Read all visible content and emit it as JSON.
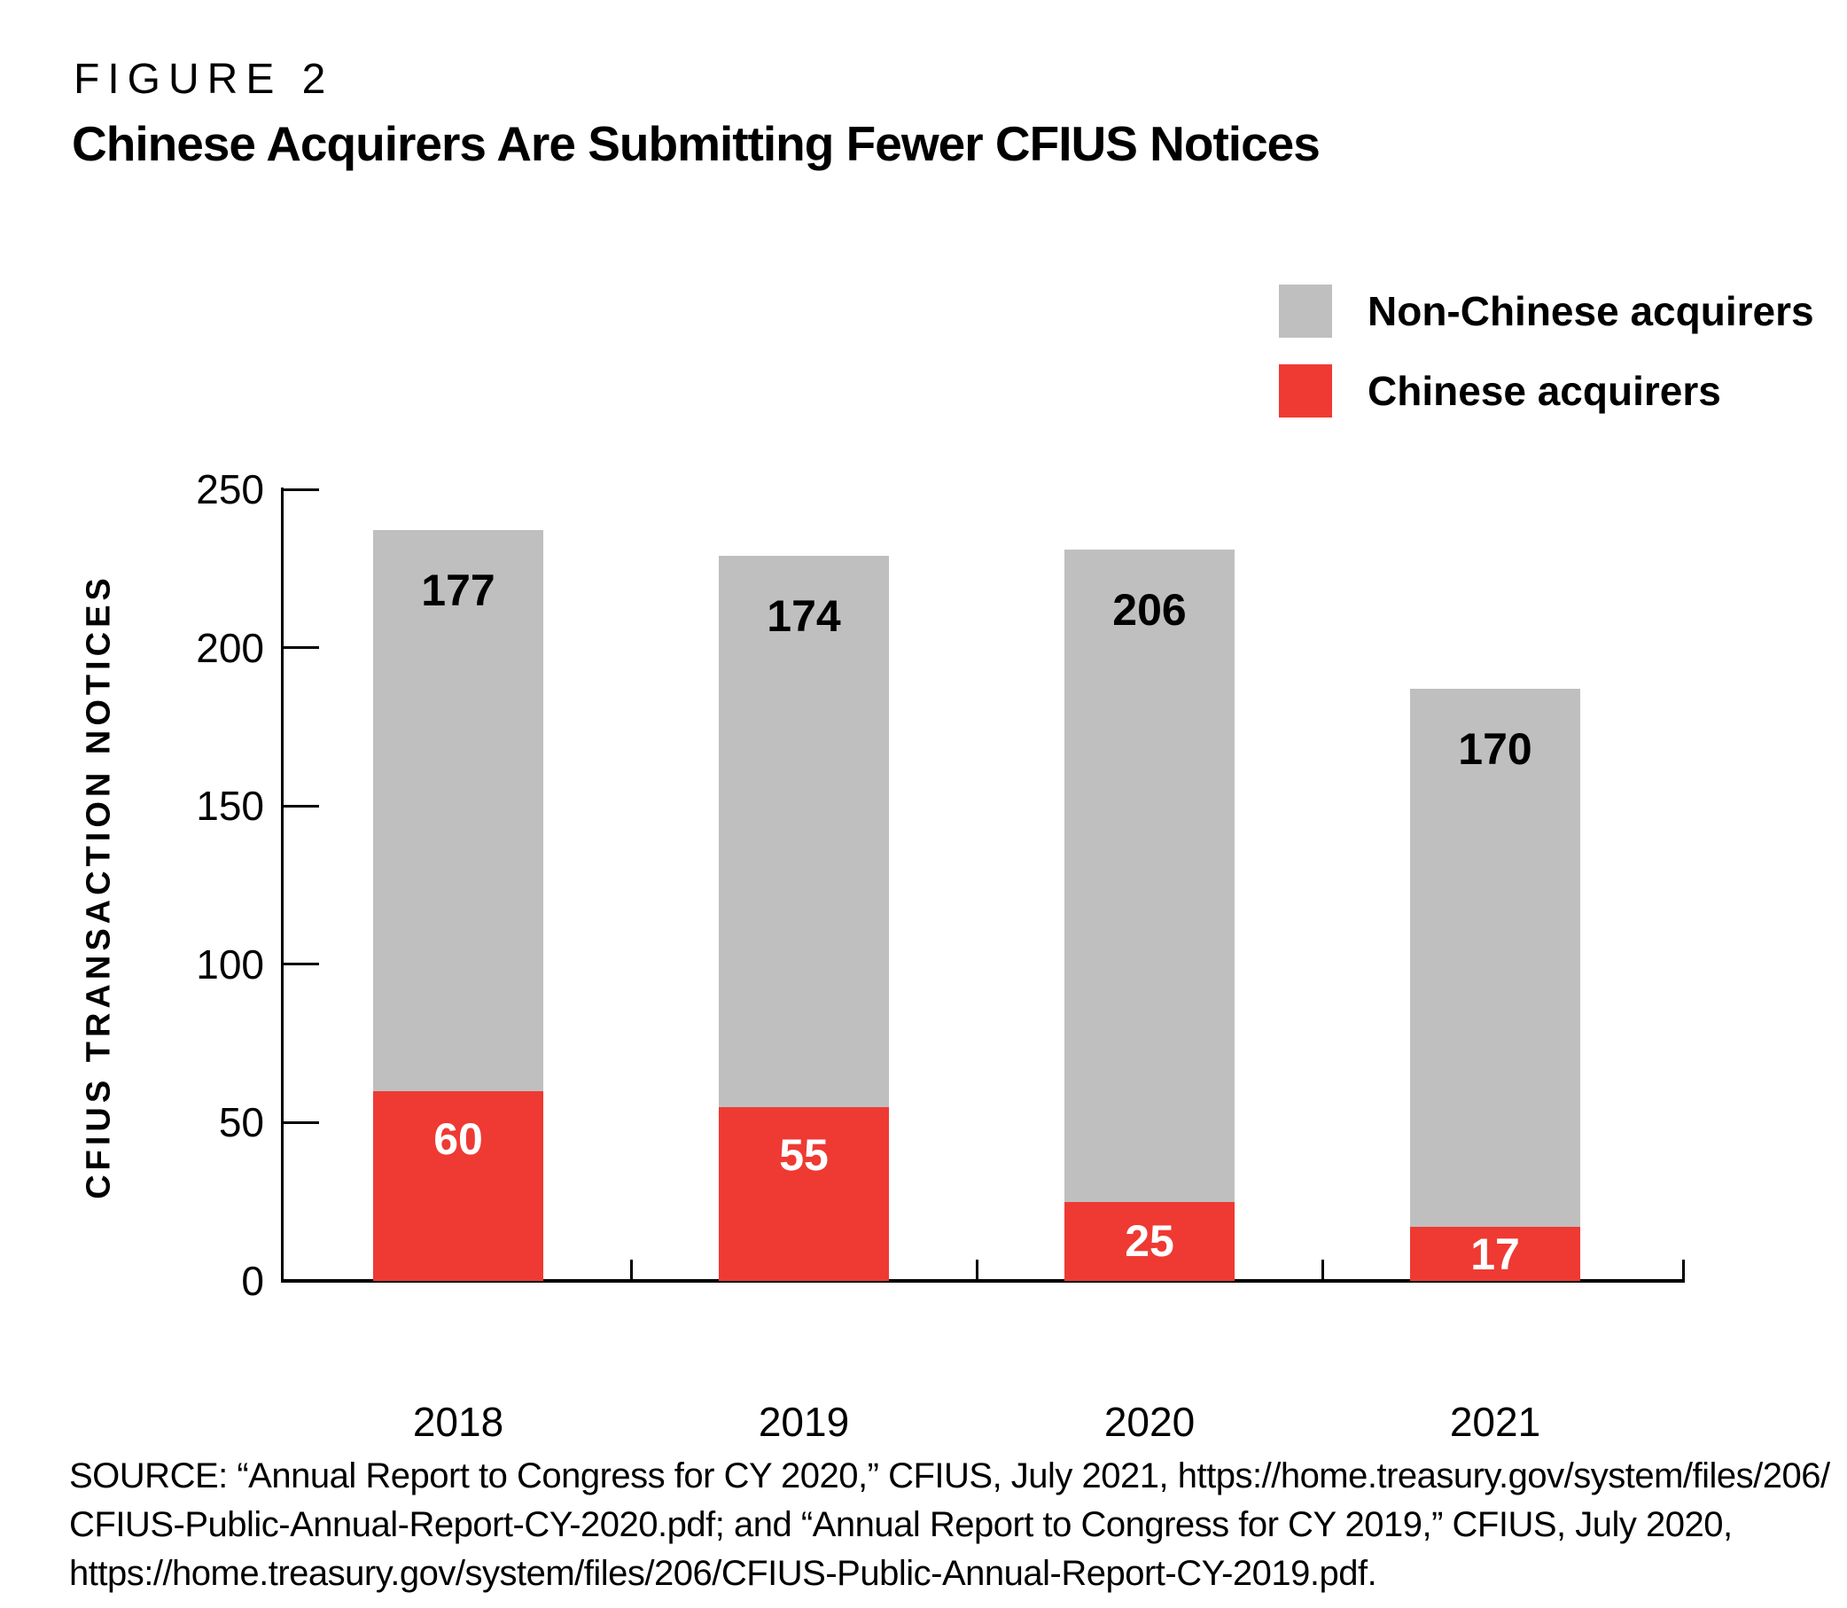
{
  "figure_label": "FIGURE 2",
  "title": "Chinese Acquirers Are Submitting Fewer CFIUS Notices",
  "colors": {
    "chinese": "#ee3a33",
    "non_chinese": "#bfbfbf",
    "axis": "#000000",
    "value_label_on_red": "#ffffff",
    "value_label_on_gray": "#000000"
  },
  "legend": {
    "items": [
      {
        "label": "Non-Chinese acquirers",
        "color_key": "non_chinese"
      },
      {
        "label": "Chinese acquirers",
        "color_key": "chinese"
      }
    ]
  },
  "chart_data": {
    "type": "bar",
    "stacked": true,
    "categories": [
      "2018",
      "2019",
      "2020",
      "2021"
    ],
    "series": [
      {
        "name": "Chinese acquirers",
        "color_key": "chinese",
        "values": [
          60,
          55,
          25,
          17
        ]
      },
      {
        "name": "Non-Chinese acquirers",
        "color_key": "non_chinese",
        "values": [
          177,
          174,
          206,
          170
        ]
      }
    ],
    "ylabel": "CFIUS TRANSACTION NOTICES",
    "yticks": [
      0,
      50,
      100,
      150,
      200,
      250
    ],
    "ylim": [
      0,
      250
    ],
    "grid": false,
    "legend_position": "top-right"
  },
  "source": {
    "lines": [
      "SOURCE: “Annual Report to Congress for CY 2020,” CFIUS, July 2021, https://home.treasury.gov/system/files/206/",
      "CFIUS-Public-Annual-Report-CY-2020.pdf; and “Annual Report to Congress for CY 2019,” CFIUS, July 2020,",
      "https://home.treasury.gov/system/files/206/CFIUS-Public-Annual-Report-CY-2019.pdf."
    ]
  }
}
